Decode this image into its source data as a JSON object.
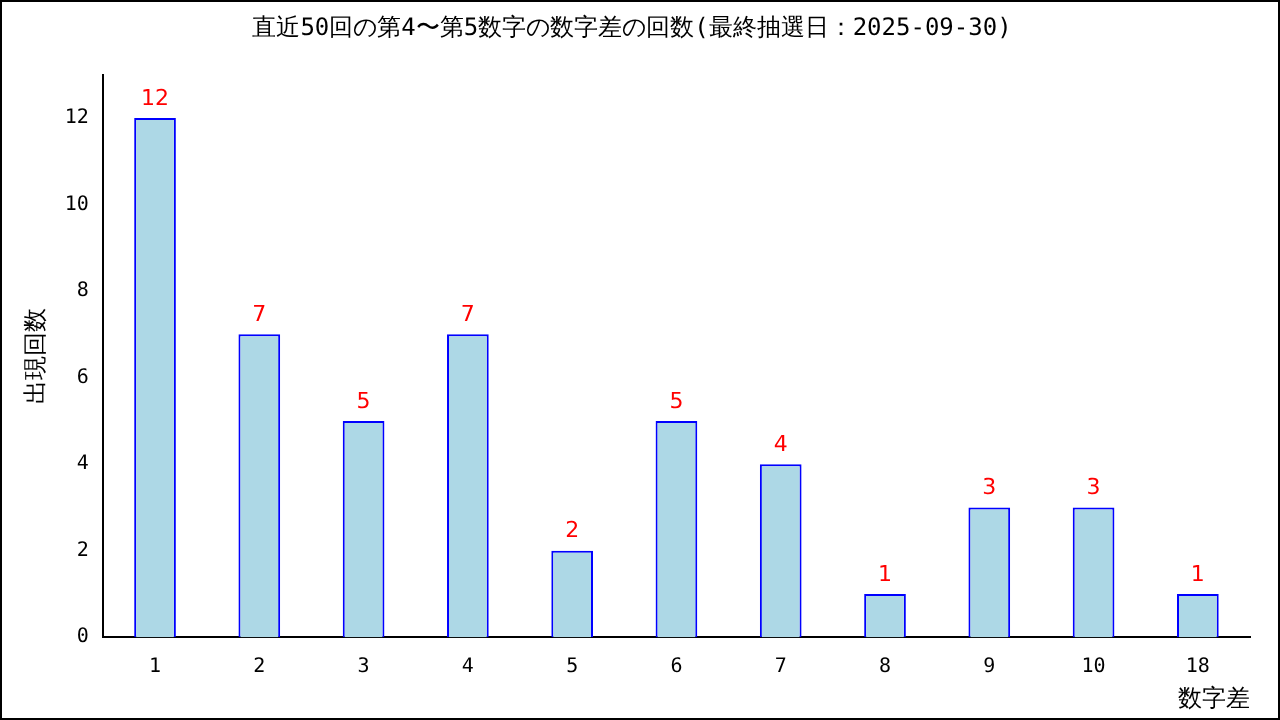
{
  "chart_data": {
    "type": "bar",
    "title": "直近50回の第4〜第5数字の数字差の回数(最終抽選日：2025-09-30)",
    "xlabel": "数字差",
    "ylabel": "出現回数",
    "categories": [
      "1",
      "2",
      "3",
      "4",
      "5",
      "6",
      "7",
      "8",
      "9",
      "10",
      "18"
    ],
    "values": [
      12,
      7,
      5,
      7,
      2,
      5,
      4,
      1,
      3,
      3,
      1
    ],
    "color": "#add8e6",
    "ylim": [
      0,
      13
    ],
    "yticks": [
      0,
      2,
      4,
      6,
      8,
      10,
      12
    ],
    "grid": false,
    "legend": false,
    "data_labels": true
  }
}
